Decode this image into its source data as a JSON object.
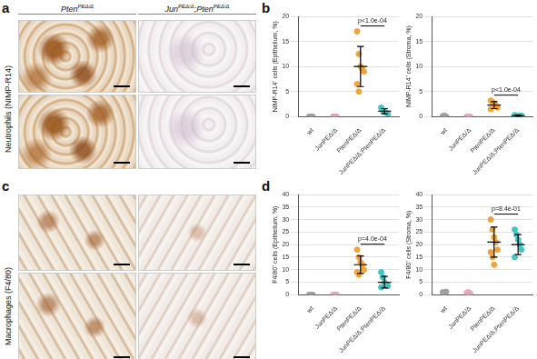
{
  "panels": {
    "a": {
      "letter": "a",
      "row_label": "Neutrophils (NIMP-R14)",
      "columns": [
        [
          {
            "text": "Pten"
          },
          {
            "sup": "PEΔ/Δ"
          }
        ],
        [
          {
            "text": "Jun"
          },
          {
            "sup": "PEΔ/Δ"
          },
          {
            "text": ";Pten"
          },
          {
            "sup": "PEΔ/Δ"
          }
        ]
      ]
    },
    "b": {
      "letter": "b"
    },
    "c": {
      "letter": "c",
      "row_label": "Macrophages (F4/80)"
    },
    "d": {
      "letter": "d"
    }
  },
  "chart_data": [
    {
      "type": "scatter",
      "y_label": "NIMP-R14⁺ cells (Epithelium, %)",
      "categories": [
        "wt",
        "JunPEΔ/Δ",
        "PtenPEΔ/Δ",
        "JunPEΔ/Δ;PtenPEΔ/Δ"
      ],
      "groups": [
        {
          "color": "#a0a0a0",
          "values": [
            0,
            0,
            0
          ]
        },
        {
          "color": "#e8a6b6",
          "values": [
            0,
            0,
            0
          ]
        },
        {
          "color": "#f0a33a",
          "values": [
            17,
            12.5,
            10,
            9.5,
            9,
            6.5,
            5
          ],
          "mean": 10,
          "sd": 4
        },
        {
          "color": "#45c4c4",
          "values": [
            1.8,
            1.2,
            1,
            0.8,
            0.6
          ],
          "mean": 1.1,
          "sd": 0.5
        }
      ],
      "ylim": [
        0,
        20
      ],
      "yticks": [
        0,
        5,
        10,
        15,
        20
      ],
      "grid": true,
      "annotations": [
        {
          "groups": [
            2,
            3
          ],
          "text": "p<1.0e-04"
        }
      ]
    },
    {
      "type": "scatter",
      "y_label": "NIMP-R14⁺ cells (Stroma, %)",
      "categories": [
        "wt",
        "JunPEΔ/Δ",
        "PtenPEΔ/Δ",
        "JunPEΔ/Δ;PtenPEΔ/Δ"
      ],
      "groups": [
        {
          "color": "#a0a0a0",
          "values": [
            0.1,
            0.2,
            0
          ]
        },
        {
          "color": "#e8a6b6",
          "values": [
            0,
            0,
            0
          ]
        },
        {
          "color": "#f0a33a",
          "values": [
            3.2,
            2.9,
            2.6,
            2.2,
            1.8,
            1.5
          ],
          "mean": 2.3,
          "sd": 0.7
        },
        {
          "color": "#45c4c4",
          "values": [
            0.3,
            0.2,
            0.2,
            0.1,
            0.2
          ],
          "mean": 0.2,
          "sd": 0.1
        }
      ],
      "ylim": [
        0,
        20
      ],
      "yticks": [
        0,
        5,
        10,
        15,
        20
      ],
      "grid": true,
      "annotations": [
        {
          "groups": [
            2,
            3
          ],
          "text": "p<1.0e-04"
        }
      ]
    },
    {
      "type": "scatter",
      "y_label": "F4/80⁺ cells (Epithelium, %)",
      "categories": [
        "wt",
        "JunPEΔ/Δ",
        "PtenPEΔ/Δ",
        "JunPEΔ/Δ;PtenPEΔ/Δ"
      ],
      "groups": [
        {
          "color": "#a0a0a0",
          "values": [
            0,
            0,
            0
          ]
        },
        {
          "color": "#e8a6b6",
          "values": [
            0,
            0,
            0
          ]
        },
        {
          "color": "#f0a33a",
          "values": [
            18,
            15,
            13,
            12,
            10,
            9,
            8
          ],
          "mean": 12,
          "sd": 3.5
        },
        {
          "color": "#45c4c4",
          "values": [
            9,
            7,
            5,
            4,
            3.5,
            3
          ],
          "mean": 5,
          "sd": 2.3
        }
      ],
      "ylim": [
        0,
        40
      ],
      "yticks": [
        0,
        5,
        10,
        15,
        20,
        25,
        30,
        35,
        40
      ],
      "grid": true,
      "annotations": [
        {
          "groups": [
            2,
            3
          ],
          "text": "p=4.0e-04"
        }
      ]
    },
    {
      "type": "scatter",
      "y_label": "F4/80⁺ cells (Stroma, %)",
      "categories": [
        "wt",
        "JunPEΔ/Δ",
        "PtenPEΔ/Δ",
        "JunPEΔ/Δ;PtenPEΔ/Δ"
      ],
      "groups": [
        {
          "color": "#a0a0a0",
          "values": [
            1,
            0.5,
            1.2
          ]
        },
        {
          "color": "#e8a6b6",
          "values": [
            0.8,
            1,
            0.6
          ]
        },
        {
          "color": "#f0a33a",
          "values": [
            30,
            26,
            23,
            21,
            18,
            17,
            15,
            12
          ],
          "mean": 21,
          "sd": 6
        },
        {
          "color": "#45c4c4",
          "values": [
            26,
            24,
            22,
            20,
            18,
            15
          ],
          "mean": 20,
          "sd": 4
        }
      ],
      "ylim": [
        0,
        40
      ],
      "yticks": [
        0,
        5,
        10,
        15,
        20,
        25,
        30,
        35,
        40
      ],
      "grid": true,
      "annotations": [
        {
          "groups": [
            2,
            3
          ],
          "text": "p=8.4e-01"
        }
      ]
    }
  ]
}
